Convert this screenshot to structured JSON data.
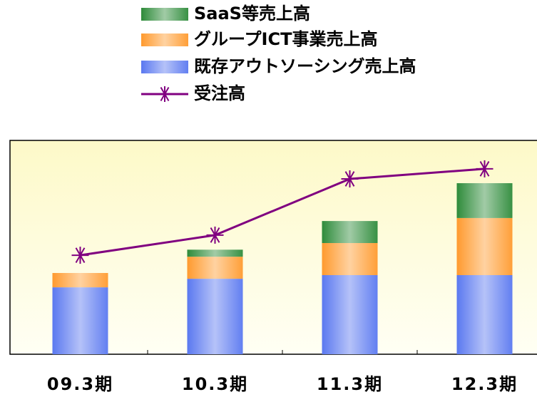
{
  "chart_data": {
    "type": "combo",
    "categories": [
      "09.3期",
      "10.3期",
      "11.3期",
      "12.3期"
    ],
    "series": [
      {
        "name": "SaaS等売上高",
        "color": "#2e8b3a",
        "values": [
          0,
          3.3,
          10.3,
          16.3
        ]
      },
      {
        "name": "グループICT事業売上高",
        "color": "#ff9a2e",
        "values": [
          6.7,
          10.3,
          15,
          26.7
        ]
      },
      {
        "name": "既存アウトソーシング売上高",
        "color": "#5a78f0",
        "values": [
          31.3,
          35.3,
          37,
          37
        ]
      }
    ],
    "line": {
      "name": "受注高",
      "color": "#800080",
      "values": [
        46.3,
        55.7,
        82,
        86.7
      ]
    },
    "ylim": [
      0,
      100
    ]
  }
}
